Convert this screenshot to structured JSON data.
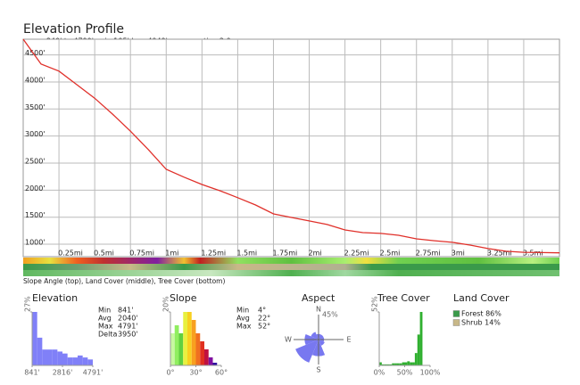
{
  "header": {
    "title": "Elevation Profile",
    "subtitle": "range 840' to 4790'  gain 105'  loss 4049'  exaggeration 2.0x"
  },
  "strip_caption": "Slope Angle (top), Land Cover (middle), Tree Cover (bottom)",
  "chart_data": [
    {
      "type": "line",
      "color": "#e0302a",
      "grid": true,
      "x": [
        0,
        0.125,
        0.25,
        0.375,
        0.5,
        0.625,
        0.75,
        0.875,
        1,
        1.125,
        1.25,
        1.375,
        1.5,
        1.625,
        1.75,
        1.875,
        2,
        2.125,
        2.25,
        2.375,
        2.5,
        2.625,
        2.75,
        2.875,
        3,
        3.125,
        3.25,
        3.375,
        3.5,
        3.625,
        3.75
      ],
      "values": [
        4790,
        4330,
        4200,
        3950,
        3700,
        3405,
        3090,
        2750,
        2385,
        2240,
        2105,
        1990,
        1860,
        1725,
        1560,
        1495,
        1430,
        1365,
        1265,
        1215,
        1200,
        1165,
        1100,
        1065,
        1035,
        985,
        920,
        870,
        850,
        845,
        841
      ],
      "xlim": [
        0,
        3.75
      ],
      "ylim": [
        770,
        4790
      ],
      "xticks": [
        {
          "value": 0.25,
          "label": "0.25mi"
        },
        {
          "value": 0.5,
          "label": "0.5mi"
        },
        {
          "value": 0.75,
          "label": "0.75mi"
        },
        {
          "value": 1,
          "label": "1mi"
        },
        {
          "value": 1.25,
          "label": "1.25mi"
        },
        {
          "value": 1.5,
          "label": "1.5mi"
        },
        {
          "value": 1.75,
          "label": "1.75mi"
        },
        {
          "value": 2,
          "label": "2mi"
        },
        {
          "value": 2.25,
          "label": "2.25mi"
        },
        {
          "value": 2.5,
          "label": "2.5mi"
        },
        {
          "value": 2.75,
          "label": "2.75mi"
        },
        {
          "value": 3,
          "label": "3mi"
        },
        {
          "value": 3.25,
          "label": "3.25mi"
        },
        {
          "value": 3.5,
          "label": "3.5mi"
        }
      ],
      "yticks": [
        {
          "value": 1000,
          "label": "1000'"
        },
        {
          "value": 1500,
          "label": "1500'"
        },
        {
          "value": 2000,
          "label": "2000'"
        },
        {
          "value": 2500,
          "label": "2500'"
        },
        {
          "value": 3000,
          "label": "3000'"
        },
        {
          "value": 3500,
          "label": "3500'"
        },
        {
          "value": 4000,
          "label": "4000'"
        },
        {
          "value": 4500,
          "label": "4500'"
        }
      ]
    },
    {
      "type": "histogram",
      "title": "Elevation",
      "color": "#8080f8",
      "bins": [
        841,
        1170,
        1500,
        1829,
        2158,
        2487,
        2816,
        3145,
        3475,
        3804,
        4133,
        4462,
        4791
      ],
      "values": [
        27,
        14,
        8,
        8,
        8,
        7,
        6,
        4,
        4,
        5,
        4,
        3
      ],
      "xlim": [
        841,
        4791
      ],
      "ylim": [
        0,
        27
      ],
      "xticks": [
        {
          "value": 841,
          "label": "841'"
        },
        {
          "value": 2816,
          "label": "2816'"
        },
        {
          "value": 4791,
          "label": "4791'"
        }
      ],
      "yticks": [
        {
          "value": 27,
          "label": "27%"
        }
      ]
    },
    {
      "type": "histogram",
      "title": "Slope",
      "colors": [
        "#c8f8a0",
        "#90ee60",
        "#60d040",
        "#e8f040",
        "#f8d020",
        "#f8a020",
        "#f07020",
        "#e03020",
        "#c01040",
        "#8010a0",
        "#3010a0"
      ],
      "bins": [
        0,
        5,
        10,
        15,
        20,
        25,
        30,
        35,
        40,
        45,
        50,
        55
      ],
      "values": [
        12,
        15,
        12,
        20,
        20,
        17,
        12,
        9,
        6,
        3,
        1
      ],
      "xlim": [
        0,
        60
      ],
      "ylim": [
        0,
        20
      ],
      "xticks": [
        {
          "value": 0,
          "label": "0°"
        },
        {
          "value": 30,
          "label": "30°"
        },
        {
          "value": 60,
          "label": "60°"
        }
      ],
      "yticks": [
        {
          "value": 20,
          "label": "20%"
        }
      ]
    },
    {
      "type": "polar",
      "title": "Aspect",
      "color": "#7878f0",
      "categories": [
        "N",
        null,
        "E",
        null,
        "S",
        null,
        "W",
        null
      ],
      "values": [
        10,
        10,
        10,
        12,
        30,
        45,
        25,
        15
      ],
      "rlim": [
        0,
        45
      ],
      "rticks": [
        {
          "value": 45,
          "label": "45%"
        }
      ]
    },
    {
      "type": "histogram",
      "title": "Tree Cover",
      "color": "#30b030",
      "bins": [
        0,
        5,
        10,
        15,
        20,
        25,
        30,
        35,
        40,
        45,
        50,
        55,
        60,
        65,
        70,
        75,
        80,
        85,
        90,
        95,
        100
      ],
      "values": [
        3,
        1,
        1,
        1,
        1,
        2,
        2,
        2,
        2,
        3,
        3,
        4,
        3,
        3,
        12,
        30,
        52,
        0,
        0,
        0
      ],
      "xlim": [
        0,
        100
      ],
      "ylim": [
        0,
        52
      ],
      "xticks": [
        {
          "value": 0,
          "label": "0%"
        },
        {
          "value": 50,
          "label": "50%"
        },
        {
          "value": 100,
          "label": "100%"
        }
      ],
      "yticks": [
        {
          "value": 52,
          "label": "52%"
        }
      ]
    }
  ],
  "elevation_stats": [
    [
      "Min",
      "841'"
    ],
    [
      "Avg",
      "2040'"
    ],
    [
      "Max",
      "4791'"
    ],
    [
      "Delta",
      "3950'"
    ]
  ],
  "slope_stats": [
    [
      "Min",
      "4°"
    ],
    [
      "Avg",
      "22°"
    ],
    [
      "Max",
      "52°"
    ]
  ],
  "land_cover": {
    "title": "Land Cover",
    "items": [
      {
        "label": "Forest 86%",
        "color": "#3a9a4a"
      },
      {
        "label": "Shrub 14%",
        "color": "#c8b888"
      }
    ]
  }
}
